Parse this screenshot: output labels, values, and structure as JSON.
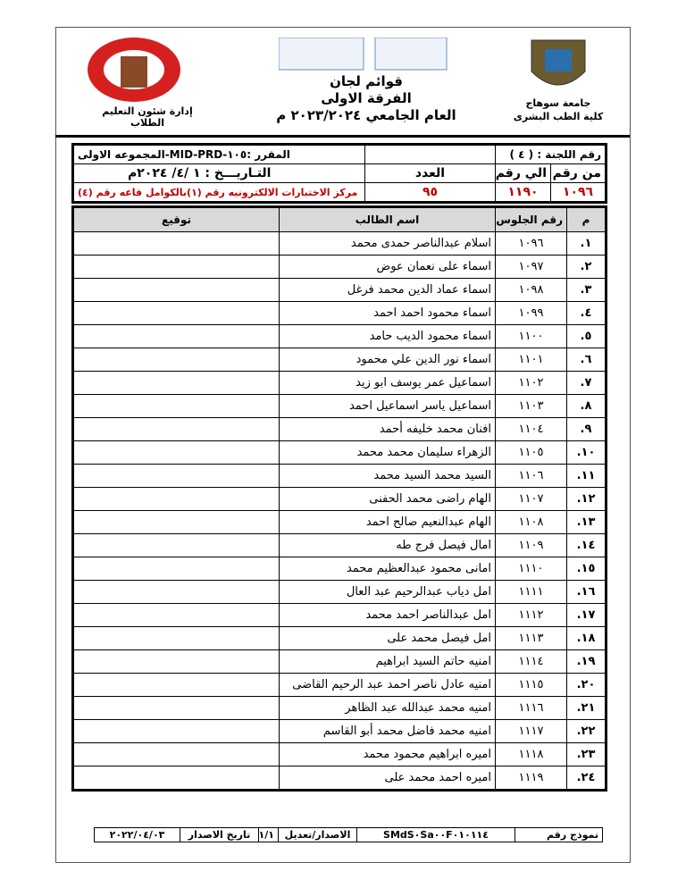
{
  "header": {
    "department": "إدارة شئون التعليم الطلاب",
    "title_lines": [
      "قوائم لجان",
      "الفرقة الاولى",
      "العام الجامعي ٢٠٢٣/٢٠٢٤ م"
    ],
    "university": "جامعة سوهاج",
    "faculty": "كلية الطب البشرى"
  },
  "committee": {
    "committee_label": "رقم اللجنة : ( ٤ )",
    "course": "المقرر :١٠٥-MID-PRD-المجموعه الاولى",
    "date": "التـاريـــخ : ١ /٤/ ٢٠٢٤م",
    "location": "مركز الاختبارات الالكترونيه رقم (١)بالكوامل قاعه رقم (٤)",
    "from_label": "من رقم",
    "to_label": "الي رقم",
    "count_label": "العدد",
    "from": "١٠٩٦",
    "to": "١١٩٠",
    "count": "٩٥"
  },
  "table": {
    "columns": [
      "م",
      "رقم الجلوس",
      "اسم الطالب",
      "توقيع"
    ],
    "rows": [
      [
        "١.",
        "١٠٩٦",
        "اسلام عبدالناصر حمدى محمد"
      ],
      [
        "٢.",
        "١٠٩٧",
        "اسماء على نعمان عوض"
      ],
      [
        "٣.",
        "١٠٩٨",
        "اسماء عماد الدين محمد فرغل"
      ],
      [
        "٤.",
        "١٠٩٩",
        "اسماء محمود احمد احمد"
      ],
      [
        "٥.",
        "١١٠٠",
        "اسماء محمود الديب حامد"
      ],
      [
        "٦.",
        "١١٠١",
        "اسماء نور الدين علي محمود"
      ],
      [
        "٧.",
        "١١٠٢",
        "اسماعيل عمر يوسف ابو زيد"
      ],
      [
        "٨.",
        "١١٠٣",
        "اسماعيل ياسر اسماعيل احمد"
      ],
      [
        "٩.",
        "١١٠٤",
        "افنان محمد خليفه أحمد"
      ],
      [
        "١٠.",
        "١١٠٥",
        "الزهراء سليمان محمد محمد"
      ],
      [
        "١١.",
        "١١٠٦",
        "السيد محمد السيد محمد"
      ],
      [
        "١٢.",
        "١١٠٧",
        "الهام راضى محمد الحفنى"
      ],
      [
        "١٣.",
        "١١٠٨",
        "الهام عبدالنعيم صالح احمد"
      ],
      [
        "١٤.",
        "١١٠٩",
        "امال فيصل فرج طه"
      ],
      [
        "١٥.",
        "١١١٠",
        "امانى محمود عبدالعظيم محمد"
      ],
      [
        "١٦.",
        "١١١١",
        "امل دياب عبدالرحيم عبد العال"
      ],
      [
        "١٧.",
        "١١١٢",
        "امل عبدالناصر احمد محمد"
      ],
      [
        "١٨.",
        "١١١٣",
        "امل فيصل محمد على"
      ],
      [
        "١٩.",
        "١١١٤",
        "امنيه حاتم السيد ابراهيم"
      ],
      [
        "٢٠.",
        "١١١٥",
        "امنيه عادل ناصر احمد عبد الرحيم  القاضى"
      ],
      [
        "٢١.",
        "١١١٦",
        "امنيه محمد عبدالله عبد الظاهر"
      ],
      [
        "٢٢.",
        "١١١٧",
        "امنيه محمد فاضل محمد أبو القاسم"
      ],
      [
        "٢٣.",
        "١١١٨",
        "اميره ابراهيم محمود محمد"
      ],
      [
        "٢٤.",
        "١١١٩",
        "اميره احمد محمد على"
      ]
    ]
  },
  "footer": {
    "form_label": "نموذج رقم",
    "form_code": "SMdS٠Sa٠٠F٠١٠١١٤",
    "version_label": "الاصدار/تعديل",
    "version": "١/١",
    "issue_label": "تاريخ الاصدار",
    "issue_date": "٢٠٢٢/٠٤/٠٣"
  }
}
